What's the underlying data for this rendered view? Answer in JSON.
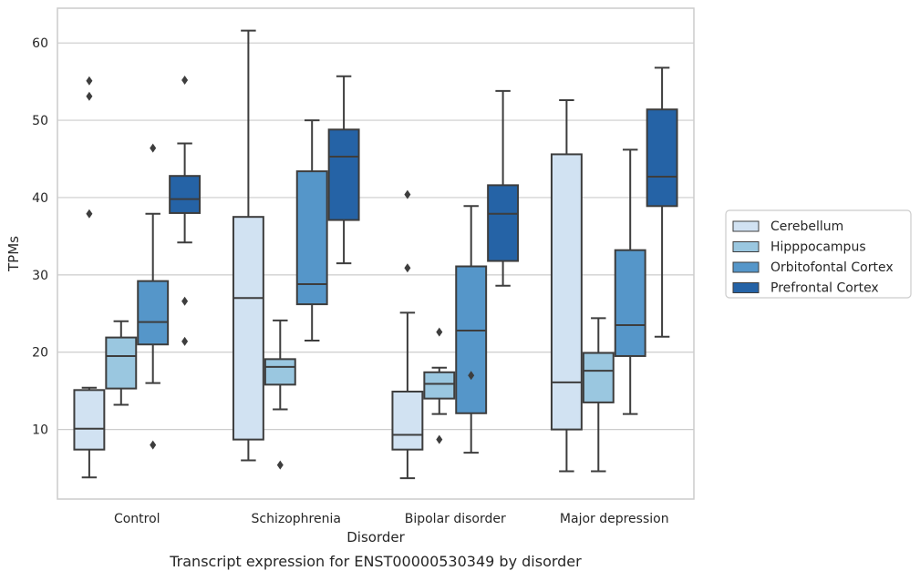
{
  "caption": "Transcript expression for ENST00000530349 by disorder",
  "chart_data": {
    "type": "box",
    "xlabel": "Disorder",
    "ylabel": "TPMs",
    "ylim": [
      1,
      64.5
    ],
    "yticks": [
      10,
      20,
      30,
      40,
      50,
      60
    ],
    "grid": "horizontal",
    "legend_placement": "right, outside plot",
    "categories": [
      "Control",
      "Schizophrenia",
      "Bipolar disorder",
      "Major depression"
    ],
    "series": [
      {
        "name": "Cerebellum",
        "color": "#d1e2f2",
        "boxes": [
          {
            "whislo": 3.8,
            "q1": 7.4,
            "med": 10.1,
            "q3": 15.1,
            "whishi": 15.4,
            "fliers": [
              37.9,
              53.1,
              55.1
            ]
          },
          {
            "whislo": 6.0,
            "q1": 8.7,
            "med": 27.0,
            "q3": 37.5,
            "whishi": 61.6,
            "fliers": []
          },
          {
            "whislo": 3.7,
            "q1": 7.4,
            "med": 9.3,
            "q3": 14.9,
            "whishi": 25.1,
            "fliers": [
              30.9,
              40.4
            ]
          },
          {
            "whislo": 4.6,
            "q1": 10.0,
            "med": 16.1,
            "q3": 45.6,
            "whishi": 52.6,
            "fliers": []
          }
        ]
      },
      {
        "name": "Hipppocampus",
        "color": "#9ac7e0",
        "boxes": [
          {
            "whislo": 13.2,
            "q1": 15.3,
            "med": 19.5,
            "q3": 21.9,
            "whishi": 24.0,
            "fliers": []
          },
          {
            "whislo": 12.6,
            "q1": 15.8,
            "med": 18.1,
            "q3": 19.1,
            "whishi": 24.1,
            "fliers": [
              5.4
            ]
          },
          {
            "whislo": 12.0,
            "q1": 14.0,
            "med": 15.9,
            "q3": 17.4,
            "whishi": 18.0,
            "fliers": [
              8.7,
              22.6
            ]
          },
          {
            "whislo": 4.6,
            "q1": 13.5,
            "med": 17.6,
            "q3": 19.9,
            "whishi": 24.4,
            "fliers": []
          }
        ]
      },
      {
        "name": "Orbitofontal Cortex",
        "color": "#5596c9",
        "boxes": [
          {
            "whislo": 16.0,
            "q1": 21.0,
            "med": 23.9,
            "q3": 29.2,
            "whishi": 37.9,
            "fliers": [
              8.0,
              46.4
            ]
          },
          {
            "whislo": 21.5,
            "q1": 26.2,
            "med": 28.8,
            "q3": 43.4,
            "whishi": 50.0,
            "fliers": []
          },
          {
            "whislo": 7.0,
            "q1": 12.1,
            "med": 22.8,
            "q3": 31.1,
            "whishi": 38.9,
            "fliers": [
              17.0
            ]
          },
          {
            "whislo": 12.0,
            "q1": 19.5,
            "med": 23.5,
            "q3": 33.2,
            "whishi": 46.2,
            "fliers": []
          }
        ]
      },
      {
        "name": "Prefrontal Cortex",
        "color": "#2563a6",
        "boxes": [
          {
            "whislo": 34.2,
            "q1": 38.0,
            "med": 39.8,
            "q3": 42.8,
            "whishi": 47.0,
            "fliers": [
              21.4,
              26.6,
              55.2
            ]
          },
          {
            "whislo": 31.5,
            "q1": 37.1,
            "med": 45.3,
            "q3": 48.8,
            "whishi": 55.7,
            "fliers": []
          },
          {
            "whislo": 28.6,
            "q1": 31.8,
            "med": 37.9,
            "q3": 41.6,
            "whishi": 53.8,
            "fliers": []
          },
          {
            "whislo": 22.0,
            "q1": 38.9,
            "med": 42.7,
            "q3": 51.4,
            "whishi": 56.8,
            "fliers": []
          }
        ]
      }
    ]
  }
}
